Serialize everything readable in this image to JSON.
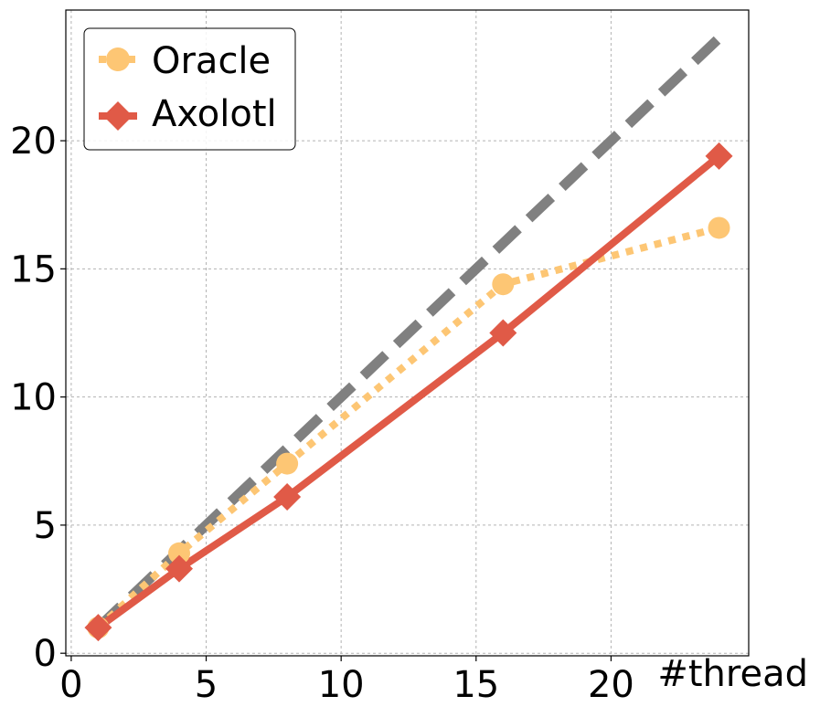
{
  "chart_data": {
    "type": "line",
    "title": "",
    "xlabel": "#thread",
    "ylabel": "",
    "xlim": [
      -0.2,
      25.1
    ],
    "ylim": [
      -0.1,
      25.1
    ],
    "xticks": [
      0,
      5,
      10,
      15,
      20
    ],
    "yticks": [
      0,
      5,
      10,
      15,
      20
    ],
    "xtick_labels": [
      "0",
      "5",
      "10",
      "15",
      "20"
    ],
    "ytick_labels": [
      "0",
      "5",
      "10",
      "15",
      "20"
    ],
    "grid": true,
    "legend_position": "top-left",
    "legend": [
      {
        "label": "Oracle",
        "series_index": 1
      },
      {
        "label": "Axolotl",
        "series_index": 2
      }
    ],
    "series": [
      {
        "x": [
          1,
          4,
          8,
          16,
          24
        ],
        "y": [
          1,
          4,
          8,
          16,
          24
        ],
        "color": "#808080",
        "style": "dashed",
        "marker": "none"
      },
      {
        "name": "Oracle",
        "x": [
          1,
          4,
          8,
          16,
          24
        ],
        "y": [
          1.0,
          3.9,
          7.4,
          14.4,
          16.6
        ],
        "color": "#fdc674",
        "style": "dotted",
        "marker": "circle"
      },
      {
        "name": "Axolotl",
        "x": [
          1,
          4,
          8,
          16,
          24
        ],
        "y": [
          1.0,
          3.3,
          6.1,
          12.5,
          19.4
        ],
        "color": "#e05a47",
        "style": "solid",
        "marker": "diamond"
      }
    ]
  }
}
